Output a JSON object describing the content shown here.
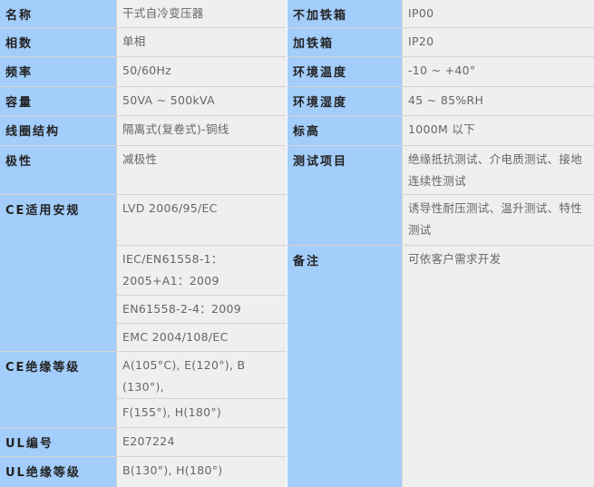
{
  "left": [
    {
      "label": "名称",
      "span": 1,
      "values": [
        "干式自冷变压器"
      ]
    },
    {
      "label": "相数",
      "span": 1,
      "values": [
        "单相"
      ]
    },
    {
      "label": "频率",
      "span": 1,
      "values": [
        "50/60Hz"
      ]
    },
    {
      "label": "容量",
      "span": 1,
      "values": [
        "50VA ~ 500kVA"
      ]
    },
    {
      "label": "线圈结构",
      "span": 1,
      "values": [
        "隔离式(复卷式)-铜线"
      ]
    },
    {
      "label": "极性",
      "span": 1,
      "values": [
        "减极性"
      ]
    },
    {
      "label": "CE适用安规",
      "span": 4,
      "values": [
        "LVD 2006/95/EC",
        "IEC/EN61558-1：2005+A1：2009",
        "EN61558-2-4：2009",
        "EMC 2004/108/EC"
      ]
    },
    {
      "label": "CE绝缘等级",
      "span": 2,
      "values": [
        "A(105°C), E(120°), B (130°),",
        "F(155°), H(180°)"
      ]
    },
    {
      "label": "UL编号",
      "span": 1,
      "values": [
        "E207224"
      ]
    },
    {
      "label": "UL绝缘等级",
      "span": 1,
      "values": [
        "B(130°), H(180°)"
      ]
    }
  ],
  "right": [
    {
      "label": "不加铁箱",
      "span": 1,
      "values": [
        "IP00"
      ]
    },
    {
      "label": "加铁箱",
      "span": 1,
      "values": [
        "IP20"
      ]
    },
    {
      "label": "环境温度",
      "span": 1,
      "values": [
        "-10 ~ +40°"
      ]
    },
    {
      "label": "环境湿度",
      "span": 1,
      "values": [
        "45 ~ 85%RH"
      ]
    },
    {
      "label": "标高",
      "span": 1,
      "values": [
        "1000M 以下"
      ]
    },
    {
      "label": "测试项目",
      "span": 2,
      "values": [
        "绝缘抵抗测试、介电质测试、接地连续性测试",
        "诱导性耐压测试、温升测试、特性测试"
      ]
    },
    {
      "label": "备注",
      "span": 1,
      "values": [
        "可依客户需求开发"
      ]
    }
  ],
  "colors": {
    "label_bg": "#a3cdfa",
    "value_bg": "#efefef",
    "border": "#d4d4d4"
  }
}
